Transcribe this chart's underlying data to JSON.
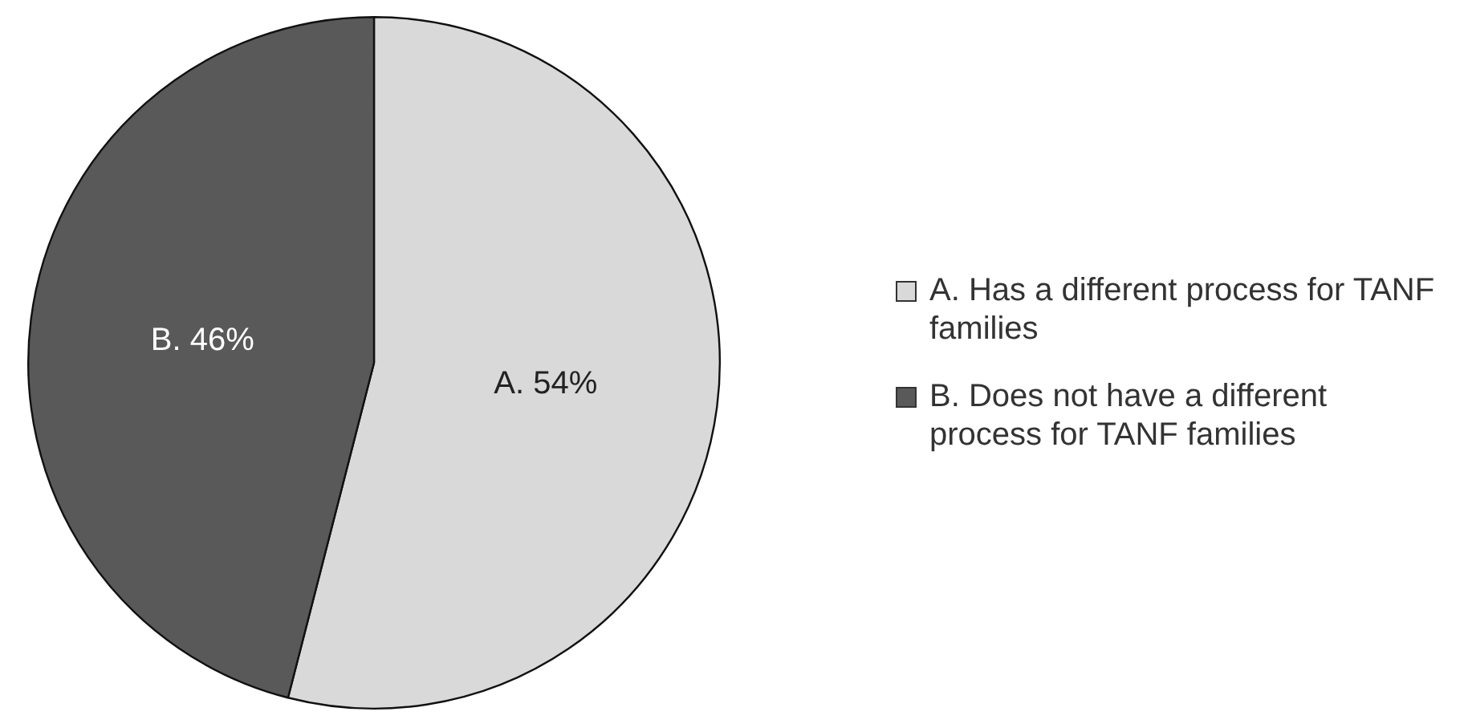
{
  "chart_data": {
    "type": "pie",
    "categories": [
      "A. Has a different process for TANF families",
      "B. Does not have a different process for TANF families"
    ],
    "values": [
      54,
      46
    ],
    "colors": [
      "#d9d9d9",
      "#595959"
    ],
    "value_labels": [
      "A. 54%",
      "B. 46%"
    ],
    "legend": "right"
  }
}
